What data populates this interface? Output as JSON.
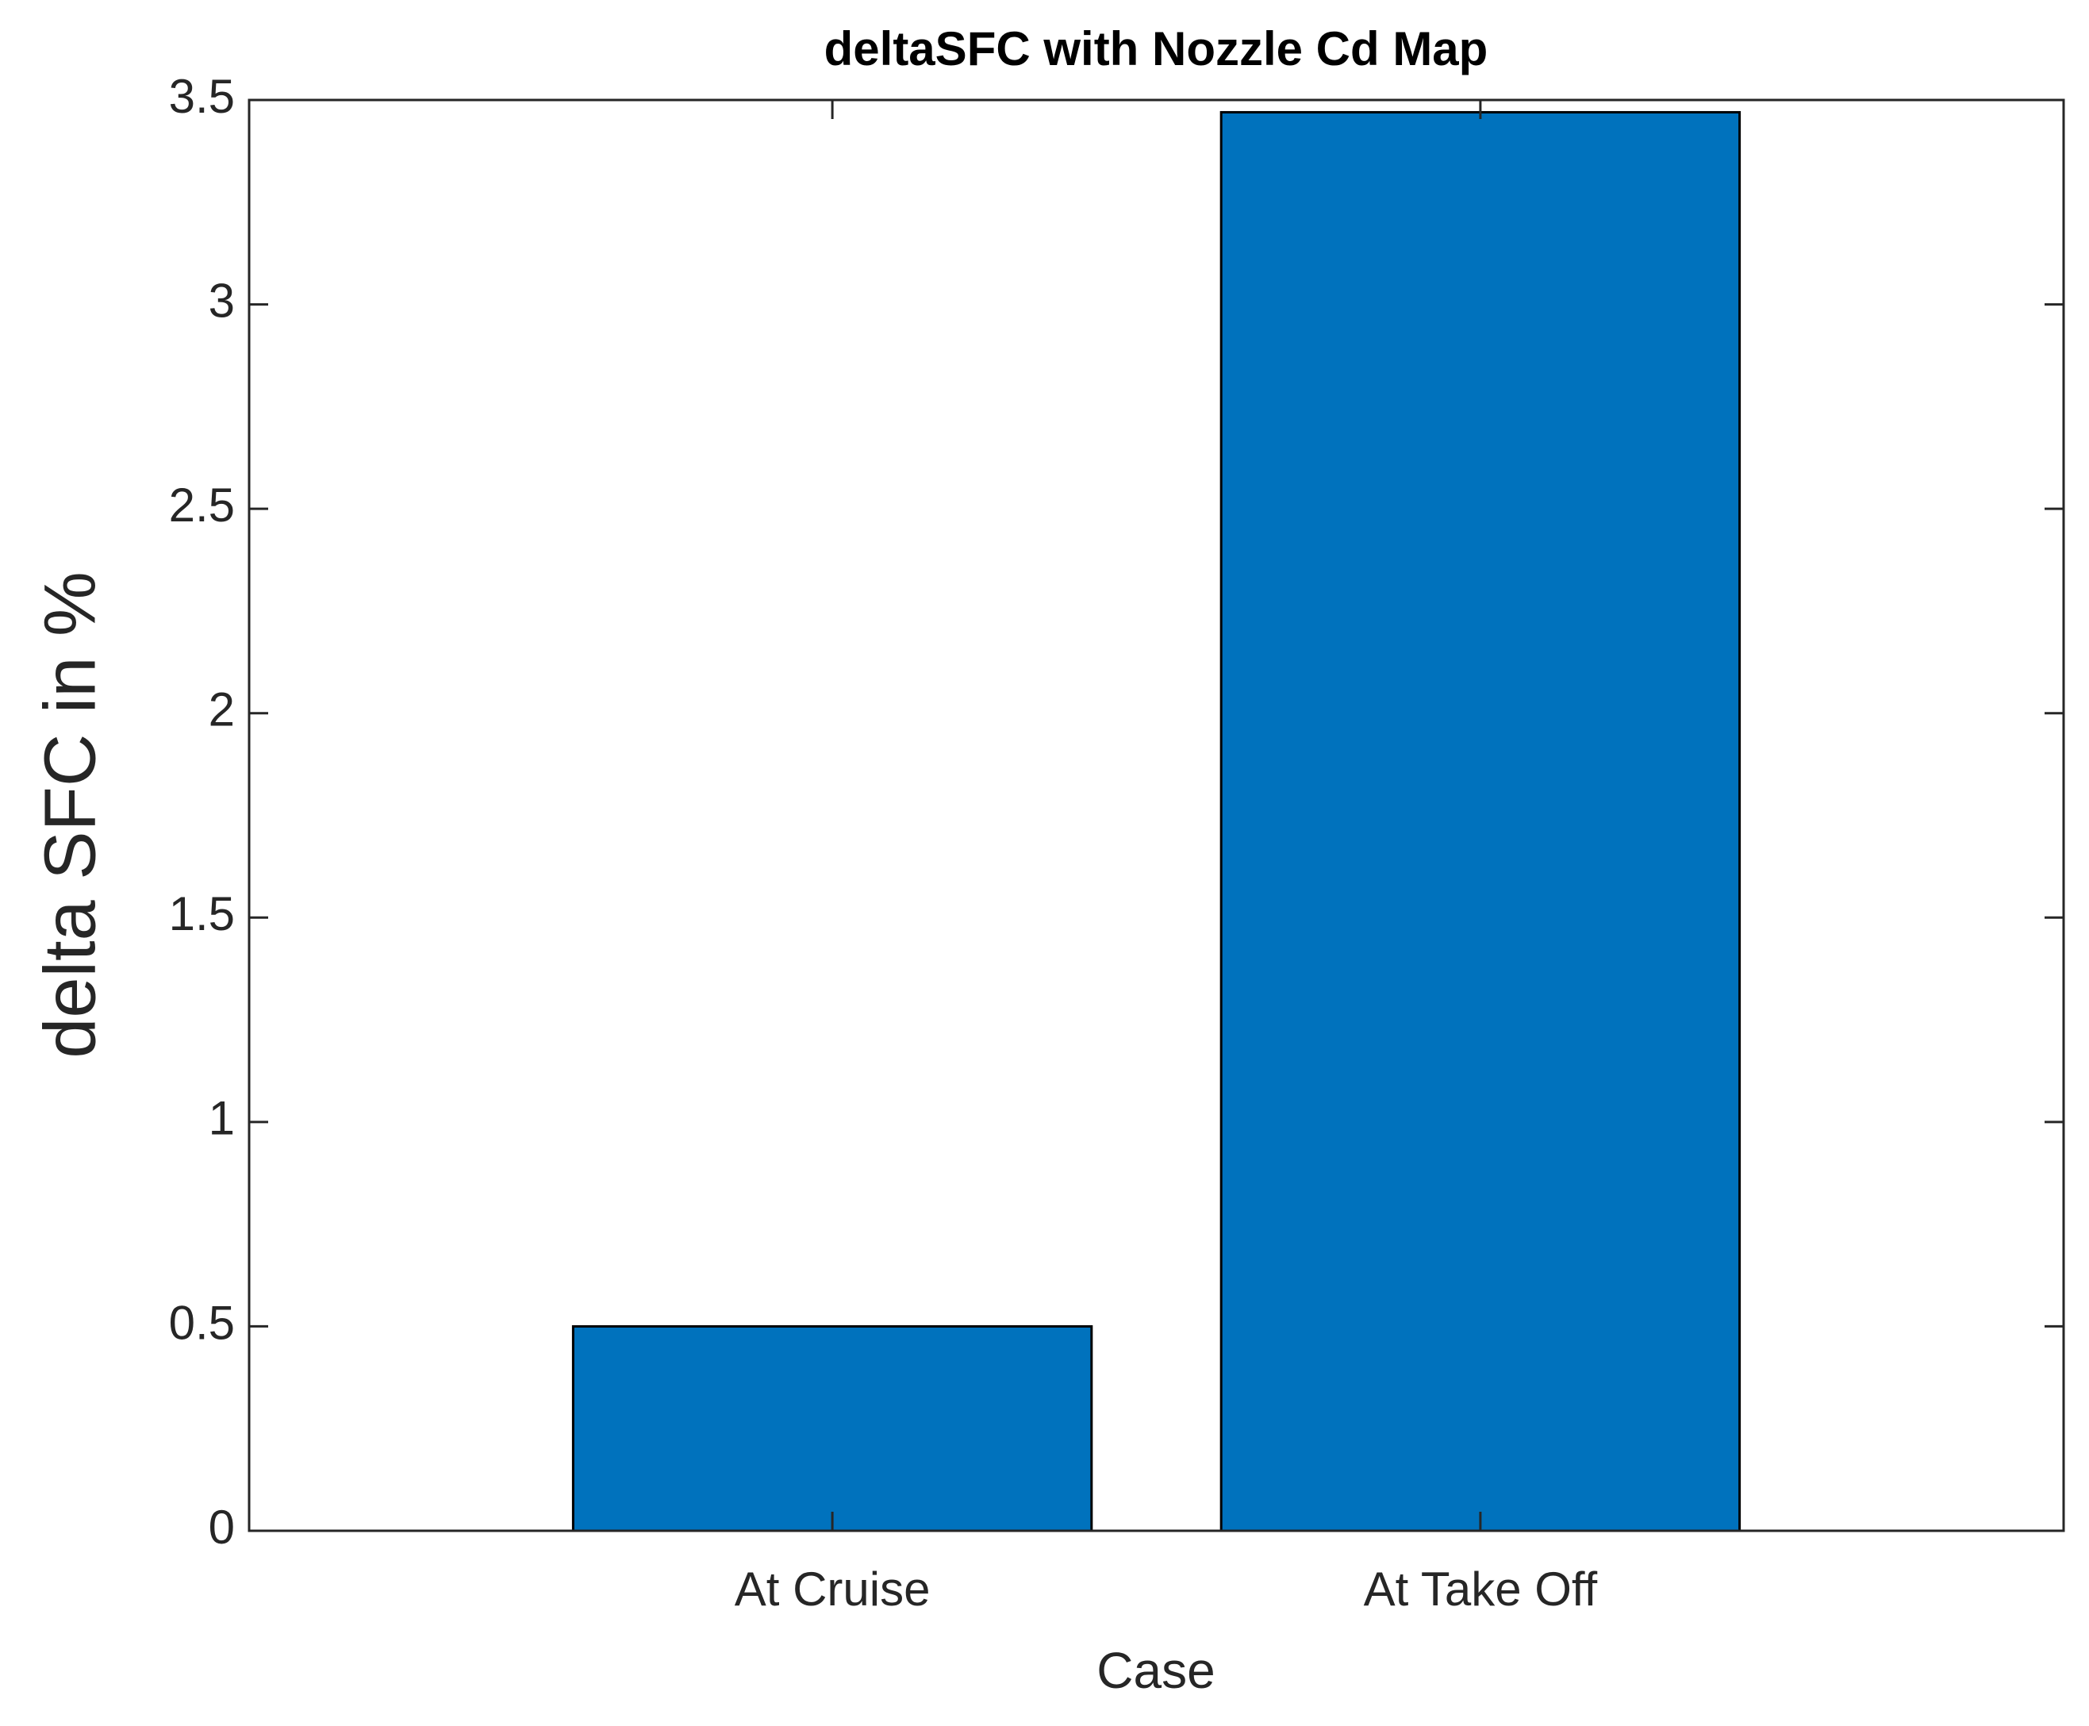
{
  "chart_data": {
    "type": "bar",
    "title": "deltaSFC with Nozzle Cd Map",
    "x_label": "Case",
    "y_label": "delta SFC in %",
    "categories": [
      "At Cruise",
      "At Take Off"
    ],
    "values": [
      0.5,
      3.47
    ],
    "color": "#0072bd",
    "ylim": [
      0,
      3.5
    ],
    "yticks": [
      0,
      0.5,
      1,
      1.5,
      2,
      2.5,
      3,
      3.5
    ],
    "grid": false
  }
}
